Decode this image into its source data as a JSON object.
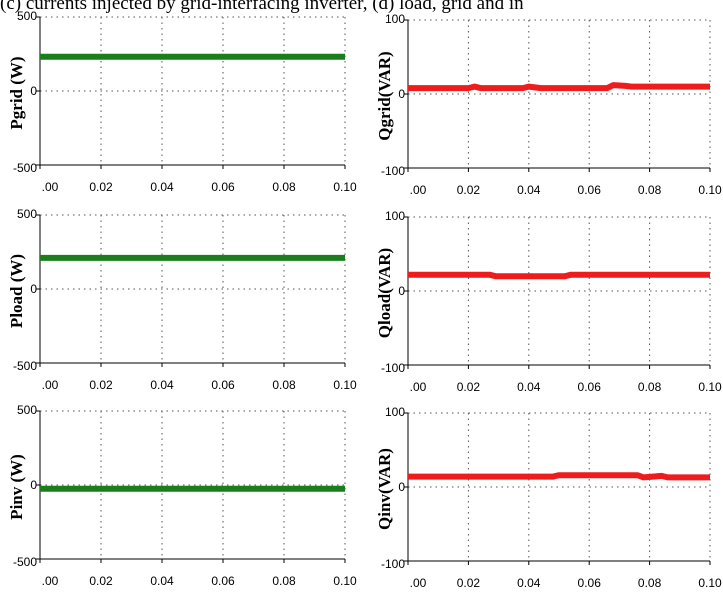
{
  "caption": "(c) currents injected by grid-interfacing inverter, (d) load, grid and in",
  "colors": {
    "active": "#1a7f1a",
    "reactive": "#ee1c1c",
    "frame": "#000000",
    "grid": "#555555"
  },
  "chart_data": [
    {
      "type": "line",
      "ylabel": "Pgrid (W)",
      "series_color": "active",
      "xlim": [
        0,
        0.1
      ],
      "ylim": [
        -500,
        500
      ],
      "xticks": [
        ".00",
        "0.02",
        "0.04",
        "0.06",
        "0.08",
        "0.10"
      ],
      "yticks": [
        "500",
        "0",
        "-500"
      ],
      "grid": true,
      "x": [
        0,
        0.1
      ],
      "y": [
        232,
        232
      ]
    },
    {
      "type": "line",
      "ylabel": "Qgrid(VAR)",
      "series_color": "reactive",
      "xlim": [
        0,
        0.1
      ],
      "ylim": [
        -100,
        100
      ],
      "xticks": [
        ".00",
        "0.02",
        "0.04",
        "0.06",
        "0.08",
        "0.10"
      ],
      "yticks": [
        "100",
        "0",
        "-100"
      ],
      "grid": true,
      "x": [
        0,
        0.02,
        0.022,
        0.024,
        0.038,
        0.04,
        0.044,
        0.046,
        0.066,
        0.068,
        0.072,
        0.074,
        0.1
      ],
      "y": [
        8,
        8,
        10,
        8,
        8,
        10,
        8,
        8,
        8,
        12,
        11,
        10,
        10
      ]
    },
    {
      "type": "line",
      "ylabel": "Pload (W)",
      "series_color": "active",
      "xlim": [
        0,
        0.1
      ],
      "ylim": [
        -500,
        500
      ],
      "xticks": [
        ".00",
        "0.02",
        "0.04",
        "0.06",
        "0.08",
        "0.10"
      ],
      "yticks": [
        "500",
        "0",
        "-500"
      ],
      "grid": true,
      "x": [
        0,
        0.1
      ],
      "y": [
        210,
        210
      ]
    },
    {
      "type": "line",
      "ylabel": "Qload(VAR)",
      "series_color": "reactive",
      "xlim": [
        0,
        0.1
      ],
      "ylim": [
        -100,
        100
      ],
      "xticks": [
        ".00",
        "0.02",
        "0.04",
        "0.06",
        "0.08",
        "0.10"
      ],
      "yticks": [
        "100",
        "0",
        "-100"
      ],
      "grid": true,
      "x": [
        0,
        0.027,
        0.029,
        0.052,
        0.054,
        0.1
      ],
      "y": [
        22,
        22,
        20,
        20,
        22,
        22
      ]
    },
    {
      "type": "line",
      "ylabel": "Pinv (W)",
      "series_color": "active",
      "xlim": [
        0,
        0.1
      ],
      "ylim": [
        -500,
        500
      ],
      "xticks": [
        ".00",
        "0.02",
        "0.04",
        "0.06",
        "0.08",
        "0.10"
      ],
      "yticks": [
        "500",
        "0",
        "-500"
      ],
      "grid": true,
      "x": [
        0,
        0.1
      ],
      "y": [
        -25,
        -25
      ]
    },
    {
      "type": "line",
      "ylabel": "Qinv(VAR)",
      "series_color": "reactive",
      "xlim": [
        0,
        0.1
      ],
      "ylim": [
        -100,
        100
      ],
      "xticks": [
        ".00",
        "0.02",
        "0.04",
        "0.06",
        "0.08",
        "0.10"
      ],
      "yticks": [
        "100",
        "0",
        "-100"
      ],
      "grid": true,
      "x": [
        0,
        0.048,
        0.05,
        0.076,
        0.078,
        0.084,
        0.086,
        0.1
      ],
      "y": [
        14,
        14,
        16,
        16,
        13,
        15,
        13,
        13
      ]
    }
  ]
}
